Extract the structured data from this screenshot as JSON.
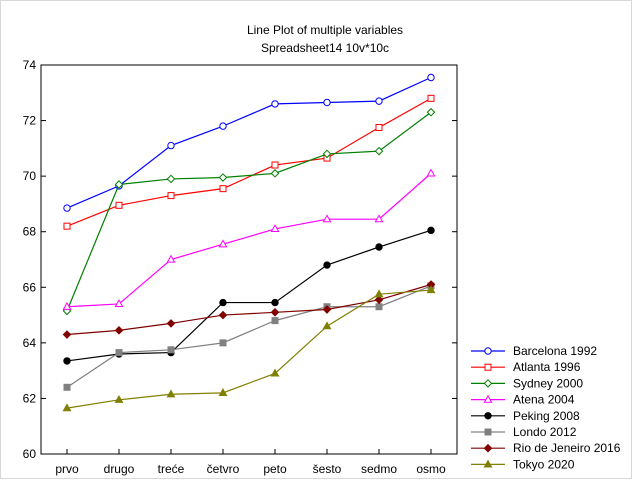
{
  "chart_data": {
    "type": "line",
    "title": "Line Plot of multiple variables",
    "subtitle": "Spreadsheet14 10v*10c",
    "xlabel": "",
    "ylabel": "",
    "categories": [
      "prvo",
      "drugo",
      "treće",
      "četvro",
      "peto",
      "šesto",
      "sedmo",
      "osmo"
    ],
    "ylim": [
      60,
      74
    ],
    "yticks": [
      60,
      62,
      64,
      66,
      68,
      70,
      72,
      74
    ],
    "grid": false,
    "legend_position": "bottom-right",
    "series": [
      {
        "name": "Barcelona 1992",
        "color": "#0000ff",
        "marker": "circle-open",
        "values": [
          68.85,
          69.65,
          71.1,
          71.8,
          72.6,
          72.65,
          72.7,
          73.55
        ]
      },
      {
        "name": "Atlanta 1996",
        "color": "#ff0000",
        "marker": "square-open",
        "values": [
          68.2,
          68.95,
          69.3,
          69.55,
          70.4,
          70.65,
          71.75,
          72.8
        ]
      },
      {
        "name": "Sydney 2000",
        "color": "#008000",
        "marker": "diamond-open",
        "values": [
          65.15,
          69.7,
          69.9,
          69.95,
          70.1,
          70.8,
          70.9,
          72.3
        ]
      },
      {
        "name": "Atena 2004",
        "color": "#ff00ff",
        "marker": "triangle-up-open",
        "values": [
          65.3,
          65.4,
          67.0,
          67.55,
          68.1,
          68.45,
          68.45,
          70.1
        ]
      },
      {
        "name": "Peking 2008",
        "color": "#000000",
        "marker": "circle-filled",
        "values": [
          63.35,
          63.6,
          63.65,
          65.45,
          65.45,
          66.8,
          67.45,
          68.05
        ]
      },
      {
        "name": "Londo 2012",
        "color": "#808080",
        "marker": "square-filled",
        "values": [
          62.4,
          63.65,
          63.75,
          64.0,
          64.8,
          65.3,
          65.3,
          66.05
        ]
      },
      {
        "name": "Rio de Jeneiro 2016",
        "color": "#800000",
        "marker": "diamond-filled",
        "values": [
          64.3,
          64.45,
          64.7,
          65.0,
          65.1,
          65.2,
          65.55,
          66.1
        ]
      },
      {
        "name": "Tokyo 2020",
        "color": "#808000",
        "marker": "triangle-up-filled",
        "values": [
          61.65,
          61.95,
          62.15,
          62.2,
          62.9,
          64.6,
          65.75,
          65.9
        ]
      }
    ]
  }
}
